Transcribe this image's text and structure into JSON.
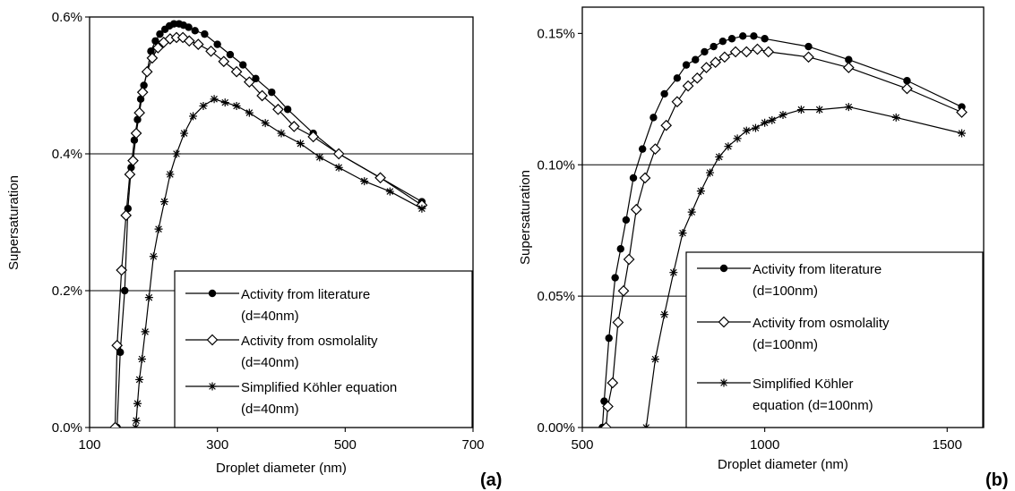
{
  "chart_data": [
    {
      "type": "line",
      "panel_label": "(a)",
      "xlabel": "Droplet diameter (nm)",
      "ylabel": "Supersaturation",
      "xlim": [
        100,
        700
      ],
      "ylim": [
        0,
        0.6
      ],
      "x_ticks": [
        "100",
        "300",
        "500",
        "700"
      ],
      "x_tick_values": [
        100,
        300,
        500,
        700
      ],
      "y_ticks": [
        "0.0%",
        "0.2%",
        "0.4%",
        "0.6%"
      ],
      "y_tick_values": [
        0,
        0.2,
        0.4,
        0.6
      ],
      "grid": "horizontal",
      "legend_position": "bottom-right",
      "series": [
        {
          "name": "Activity from literature (d=40nm)",
          "legend_lines": [
            "Activity from literature",
            "(d=40nm)"
          ],
          "marker": "filled-circle",
          "x": [
            143,
            148,
            155,
            160,
            165,
            170,
            175,
            180,
            185,
            190,
            196,
            203,
            210,
            218,
            225,
            232,
            240,
            247,
            255,
            265,
            280,
            300,
            320,
            340,
            360,
            385,
            410,
            450,
            490,
            555,
            620
          ],
          "y": [
            0.0,
            0.11,
            0.2,
            0.32,
            0.38,
            0.42,
            0.45,
            0.48,
            0.5,
            0.52,
            0.55,
            0.565,
            0.575,
            0.582,
            0.587,
            0.59,
            0.59,
            0.588,
            0.585,
            0.58,
            0.575,
            0.56,
            0.545,
            0.53,
            0.51,
            0.49,
            0.465,
            0.43,
            0.4,
            0.365,
            0.33
          ]
        },
        {
          "name": "Activity from osmolality (d=40nm)",
          "legend_lines": [
            "Activity from osmolality",
            "(d=40nm)"
          ],
          "marker": "open-diamond",
          "x": [
            140,
            143,
            150,
            157,
            163,
            168,
            173,
            178,
            183,
            190,
            198,
            207,
            216,
            226,
            236,
            246,
            256,
            270,
            290,
            310,
            330,
            350,
            370,
            395,
            420,
            450,
            490,
            555,
            620
          ],
          "y": [
            0.0,
            0.12,
            0.23,
            0.31,
            0.37,
            0.39,
            0.43,
            0.46,
            0.49,
            0.52,
            0.54,
            0.555,
            0.563,
            0.568,
            0.57,
            0.57,
            0.565,
            0.56,
            0.55,
            0.535,
            0.52,
            0.505,
            0.485,
            0.465,
            0.44,
            0.425,
            0.4,
            0.365,
            0.325
          ]
        },
        {
          "name": "Simplified Köhler equation (d=40nm)",
          "legend_lines": [
            "Simplified Köhler equation",
            "(d=40nm)"
          ],
          "marker": "asterisk",
          "x": [
            172,
            173,
            175,
            178,
            182,
            187,
            193,
            200,
            208,
            217,
            226,
            236,
            248,
            262,
            278,
            295,
            312,
            330,
            350,
            375,
            400,
            430,
            460,
            490,
            530,
            570,
            620
          ],
          "y": [
            0.0,
            0.01,
            0.035,
            0.07,
            0.1,
            0.14,
            0.19,
            0.25,
            0.29,
            0.33,
            0.37,
            0.4,
            0.43,
            0.455,
            0.47,
            0.48,
            0.475,
            0.47,
            0.46,
            0.445,
            0.43,
            0.415,
            0.395,
            0.38,
            0.36,
            0.345,
            0.32
          ]
        }
      ]
    },
    {
      "type": "line",
      "panel_label": "(b)",
      "xlabel": "Droplet diameter (nm)",
      "ylabel": "Supersaturation",
      "xlim": [
        500,
        1600
      ],
      "ylim": [
        0,
        0.16
      ],
      "x_ticks": [
        "500",
        "1000",
        "1500"
      ],
      "x_tick_values": [
        500,
        1000,
        1500
      ],
      "y_ticks": [
        "0.00%",
        "0.05%",
        "0.10%",
        "0.15%"
      ],
      "y_tick_values": [
        0,
        0.05,
        0.1,
        0.15
      ],
      "grid": "horizontal",
      "legend_position": "bottom-right",
      "series": [
        {
          "name": "Activity from literature (d=100nm)",
          "legend_lines": [
            "Activity from literature",
            "(d=100nm)"
          ],
          "marker": "filled-circle",
          "x": [
            555,
            560,
            573,
            590,
            605,
            620,
            640,
            665,
            695,
            725,
            760,
            785,
            810,
            835,
            860,
            885,
            910,
            940,
            970,
            1000,
            1120,
            1230,
            1390,
            1540
          ],
          "y": [
            0.0,
            0.01,
            0.034,
            0.057,
            0.068,
            0.079,
            0.095,
            0.106,
            0.118,
            0.127,
            0.133,
            0.138,
            0.14,
            0.143,
            0.145,
            0.147,
            0.148,
            0.149,
            0.149,
            0.148,
            0.145,
            0.14,
            0.132,
            0.122
          ]
        },
        {
          "name": "Activity from osmolality (d=100nm)",
          "legend_lines": [
            "Activity from osmolality",
            "(d=100nm)"
          ],
          "marker": "open-diamond",
          "x": [
            565,
            570,
            583,
            598,
            613,
            628,
            648,
            672,
            700,
            730,
            760,
            790,
            815,
            840,
            865,
            890,
            920,
            950,
            980,
            1010,
            1120,
            1230,
            1390,
            1540
          ],
          "y": [
            0.0,
            0.008,
            0.017,
            0.04,
            0.052,
            0.064,
            0.083,
            0.095,
            0.106,
            0.115,
            0.124,
            0.13,
            0.133,
            0.137,
            0.139,
            0.141,
            0.143,
            0.143,
            0.144,
            0.143,
            0.141,
            0.137,
            0.129,
            0.12
          ]
        },
        {
          "name": "Simplified Köhler equation (d=100nm)",
          "legend_lines": [
            "Simplified Köhler",
            "equation (d=100nm)"
          ],
          "marker": "asterisk",
          "x": [
            675,
            700,
            725,
            750,
            775,
            800,
            825,
            850,
            875,
            900,
            925,
            950,
            975,
            1000,
            1020,
            1050,
            1100,
            1150,
            1230,
            1360,
            1540
          ],
          "y": [
            0.0,
            0.026,
            0.043,
            0.059,
            0.074,
            0.082,
            0.09,
            0.097,
            0.103,
            0.107,
            0.11,
            0.113,
            0.114,
            0.116,
            0.117,
            0.119,
            0.121,
            0.121,
            0.122,
            0.118,
            0.112
          ]
        }
      ]
    }
  ]
}
